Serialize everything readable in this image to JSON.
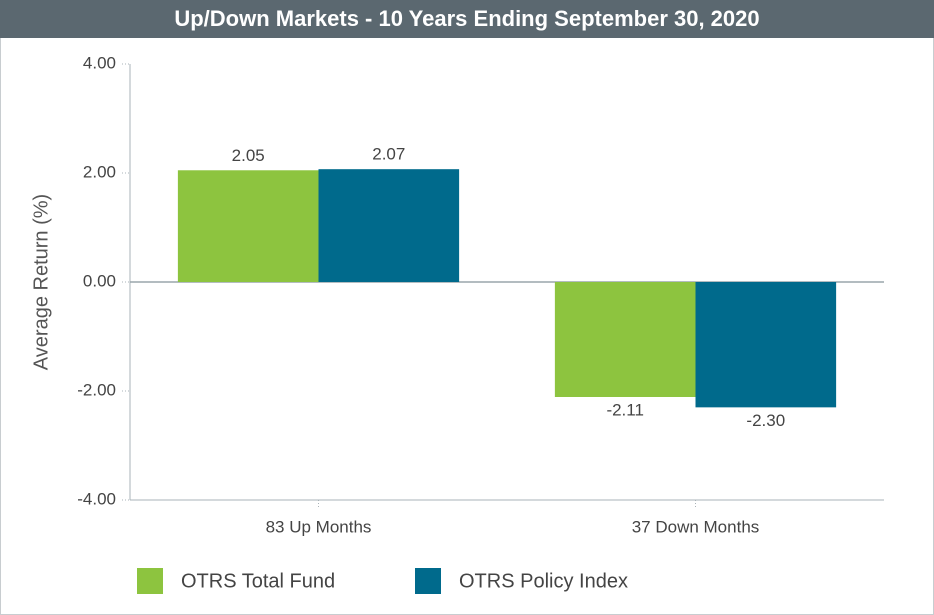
{
  "chart_data": {
    "type": "bar",
    "title": "Up/Down Markets - 10 Years Ending September 30, 2020",
    "y_label": "Average Return (%)",
    "categories": [
      "83 Up Months",
      "37 Down Months"
    ],
    "series": [
      {
        "name": "OTRS Total Fund",
        "color": "#8dc43f",
        "values": [
          2.05,
          -2.11
        ],
        "value_labels": [
          "2.05",
          "-2.11"
        ]
      },
      {
        "name": "OTRS Policy Index",
        "color": "#006a8c",
        "values": [
          2.07,
          -2.3
        ],
        "value_labels": [
          "2.07",
          "-2.30"
        ]
      }
    ],
    "ylim": [
      -4,
      4
    ],
    "yticks": [
      {
        "value": -4,
        "label": "-4.00"
      },
      {
        "value": -2,
        "label": "-2.00"
      },
      {
        "value": 0,
        "label": "0.00"
      },
      {
        "value": 2,
        "label": "2.00"
      },
      {
        "value": 4,
        "label": "4.00"
      }
    ],
    "legend": "bottom"
  }
}
